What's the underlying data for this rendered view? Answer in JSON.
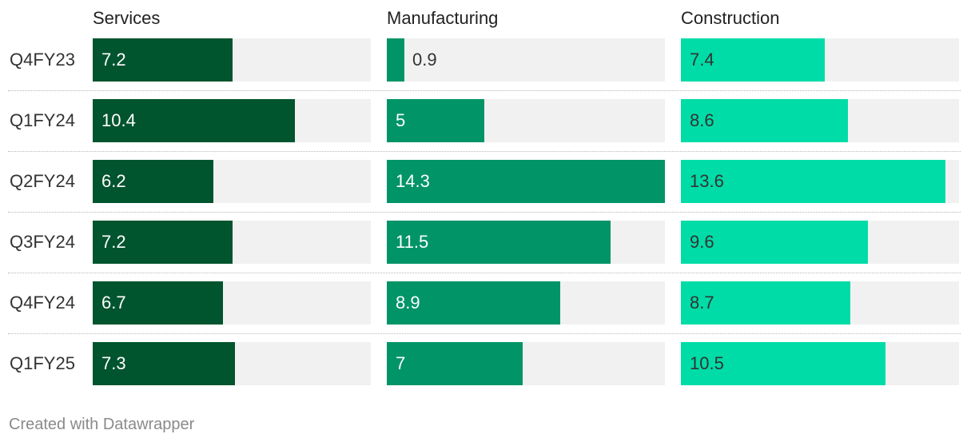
{
  "chart_data": {
    "type": "bar",
    "orientation": "horizontal",
    "layout": "small-multiples",
    "categories": [
      "Q4FY23",
      "Q1FY24",
      "Q2FY24",
      "Q3FY24",
      "Q4FY24",
      "Q1FY25"
    ],
    "series": [
      {
        "name": "Services",
        "values": [
          7.2,
          10.4,
          6.2,
          7.2,
          6.7,
          7.3
        ],
        "color": "#00542e",
        "label_color": "#ffffff"
      },
      {
        "name": "Manufacturing",
        "values": [
          0.9,
          5,
          14.3,
          11.5,
          8.9,
          7
        ],
        "color": "#009467",
        "label_color": "#ffffff"
      },
      {
        "name": "Construction",
        "values": [
          7.4,
          8.6,
          13.6,
          9.6,
          8.7,
          10.5
        ],
        "color": "#00dca7",
        "label_color": "#333333"
      }
    ],
    "xlim": [
      0,
      14.3
    ],
    "track_color": "#f1f1f1",
    "grid": false,
    "legend": "none"
  },
  "footer": {
    "credit": "Created with Datawrapper"
  }
}
